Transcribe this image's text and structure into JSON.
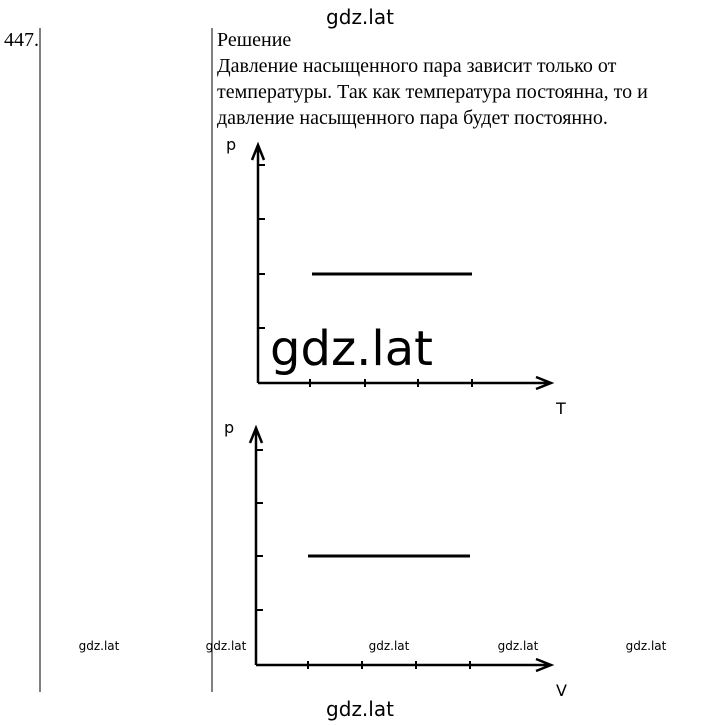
{
  "watermark_top": "gdz.lat",
  "problem_number": "447.",
  "solution": {
    "heading": "Решение",
    "lines": [
      "Давление насыщенного пара зависит только от",
      "температуры. Так как температура постоянна, то и",
      "давление насыщенного пара будет постоянно."
    ]
  },
  "graphs": [
    {
      "y_label": "p",
      "x_label": "T"
    },
    {
      "y_label": "p",
      "x_label": "V"
    }
  ],
  "watermark_large": "gdz.lat",
  "watermarks_small": [
    "gdz.lat",
    "gdz.lat",
    "gdz.lat",
    "gdz.lat",
    "gdz.lat"
  ],
  "watermark_bottom": "gdz.lat"
}
